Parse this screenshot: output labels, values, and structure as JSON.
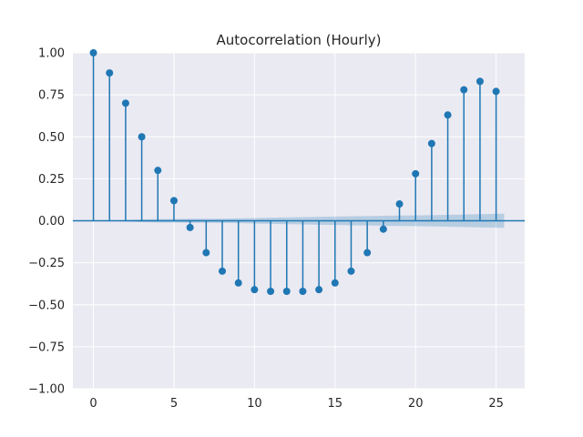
{
  "chart_data": {
    "type": "stem",
    "title": "Autocorrelation (Hourly)",
    "xlabel": "",
    "ylabel": "",
    "xlim": [
      -1.275,
      26.775
    ],
    "ylim": [
      -1.0,
      1.0
    ],
    "x_ticks": [
      0,
      5,
      10,
      15,
      20,
      25
    ],
    "y_ticks": [
      -1.0,
      -0.75,
      -0.5,
      -0.25,
      0.0,
      0.25,
      0.5,
      0.75,
      1.0
    ],
    "x_tick_labels": [
      "0",
      "5",
      "10",
      "15",
      "20",
      "25"
    ],
    "y_tick_labels": [
      "−1.00",
      "−0.75",
      "−0.50",
      "−0.25",
      "0.00",
      "0.25",
      "0.50",
      "0.75",
      "1.00"
    ],
    "grid": true,
    "background_color": "#eaeaf2",
    "series_color": "#1f77b4",
    "lags": [
      0,
      1,
      2,
      3,
      4,
      5,
      6,
      7,
      8,
      9,
      10,
      11,
      12,
      13,
      14,
      15,
      16,
      17,
      18,
      19,
      20,
      21,
      22,
      23,
      24,
      25
    ],
    "values": [
      1.0,
      0.88,
      0.7,
      0.5,
      0.3,
      0.12,
      -0.04,
      -0.19,
      -0.3,
      -0.37,
      -0.41,
      -0.42,
      -0.42,
      -0.42,
      -0.41,
      -0.37,
      -0.3,
      -0.19,
      -0.05,
      0.1,
      0.28,
      0.46,
      0.63,
      0.78,
      0.83,
      0.77
    ],
    "confidence_band": {
      "lags": [
        1,
        2,
        3,
        4,
        5,
        6,
        7,
        8,
        9,
        10,
        11,
        12,
        13,
        14,
        15,
        16,
        17,
        18,
        19,
        20,
        21,
        22,
        23,
        24,
        25,
        25.5
      ],
      "upper": [
        0.0,
        0.005,
        0.008,
        0.01,
        0.011,
        0.012,
        0.012,
        0.013,
        0.014,
        0.016,
        0.018,
        0.02,
        0.022,
        0.024,
        0.025,
        0.027,
        0.028,
        0.03,
        0.031,
        0.032,
        0.033,
        0.035,
        0.037,
        0.039,
        0.041,
        0.042
      ]
    }
  }
}
